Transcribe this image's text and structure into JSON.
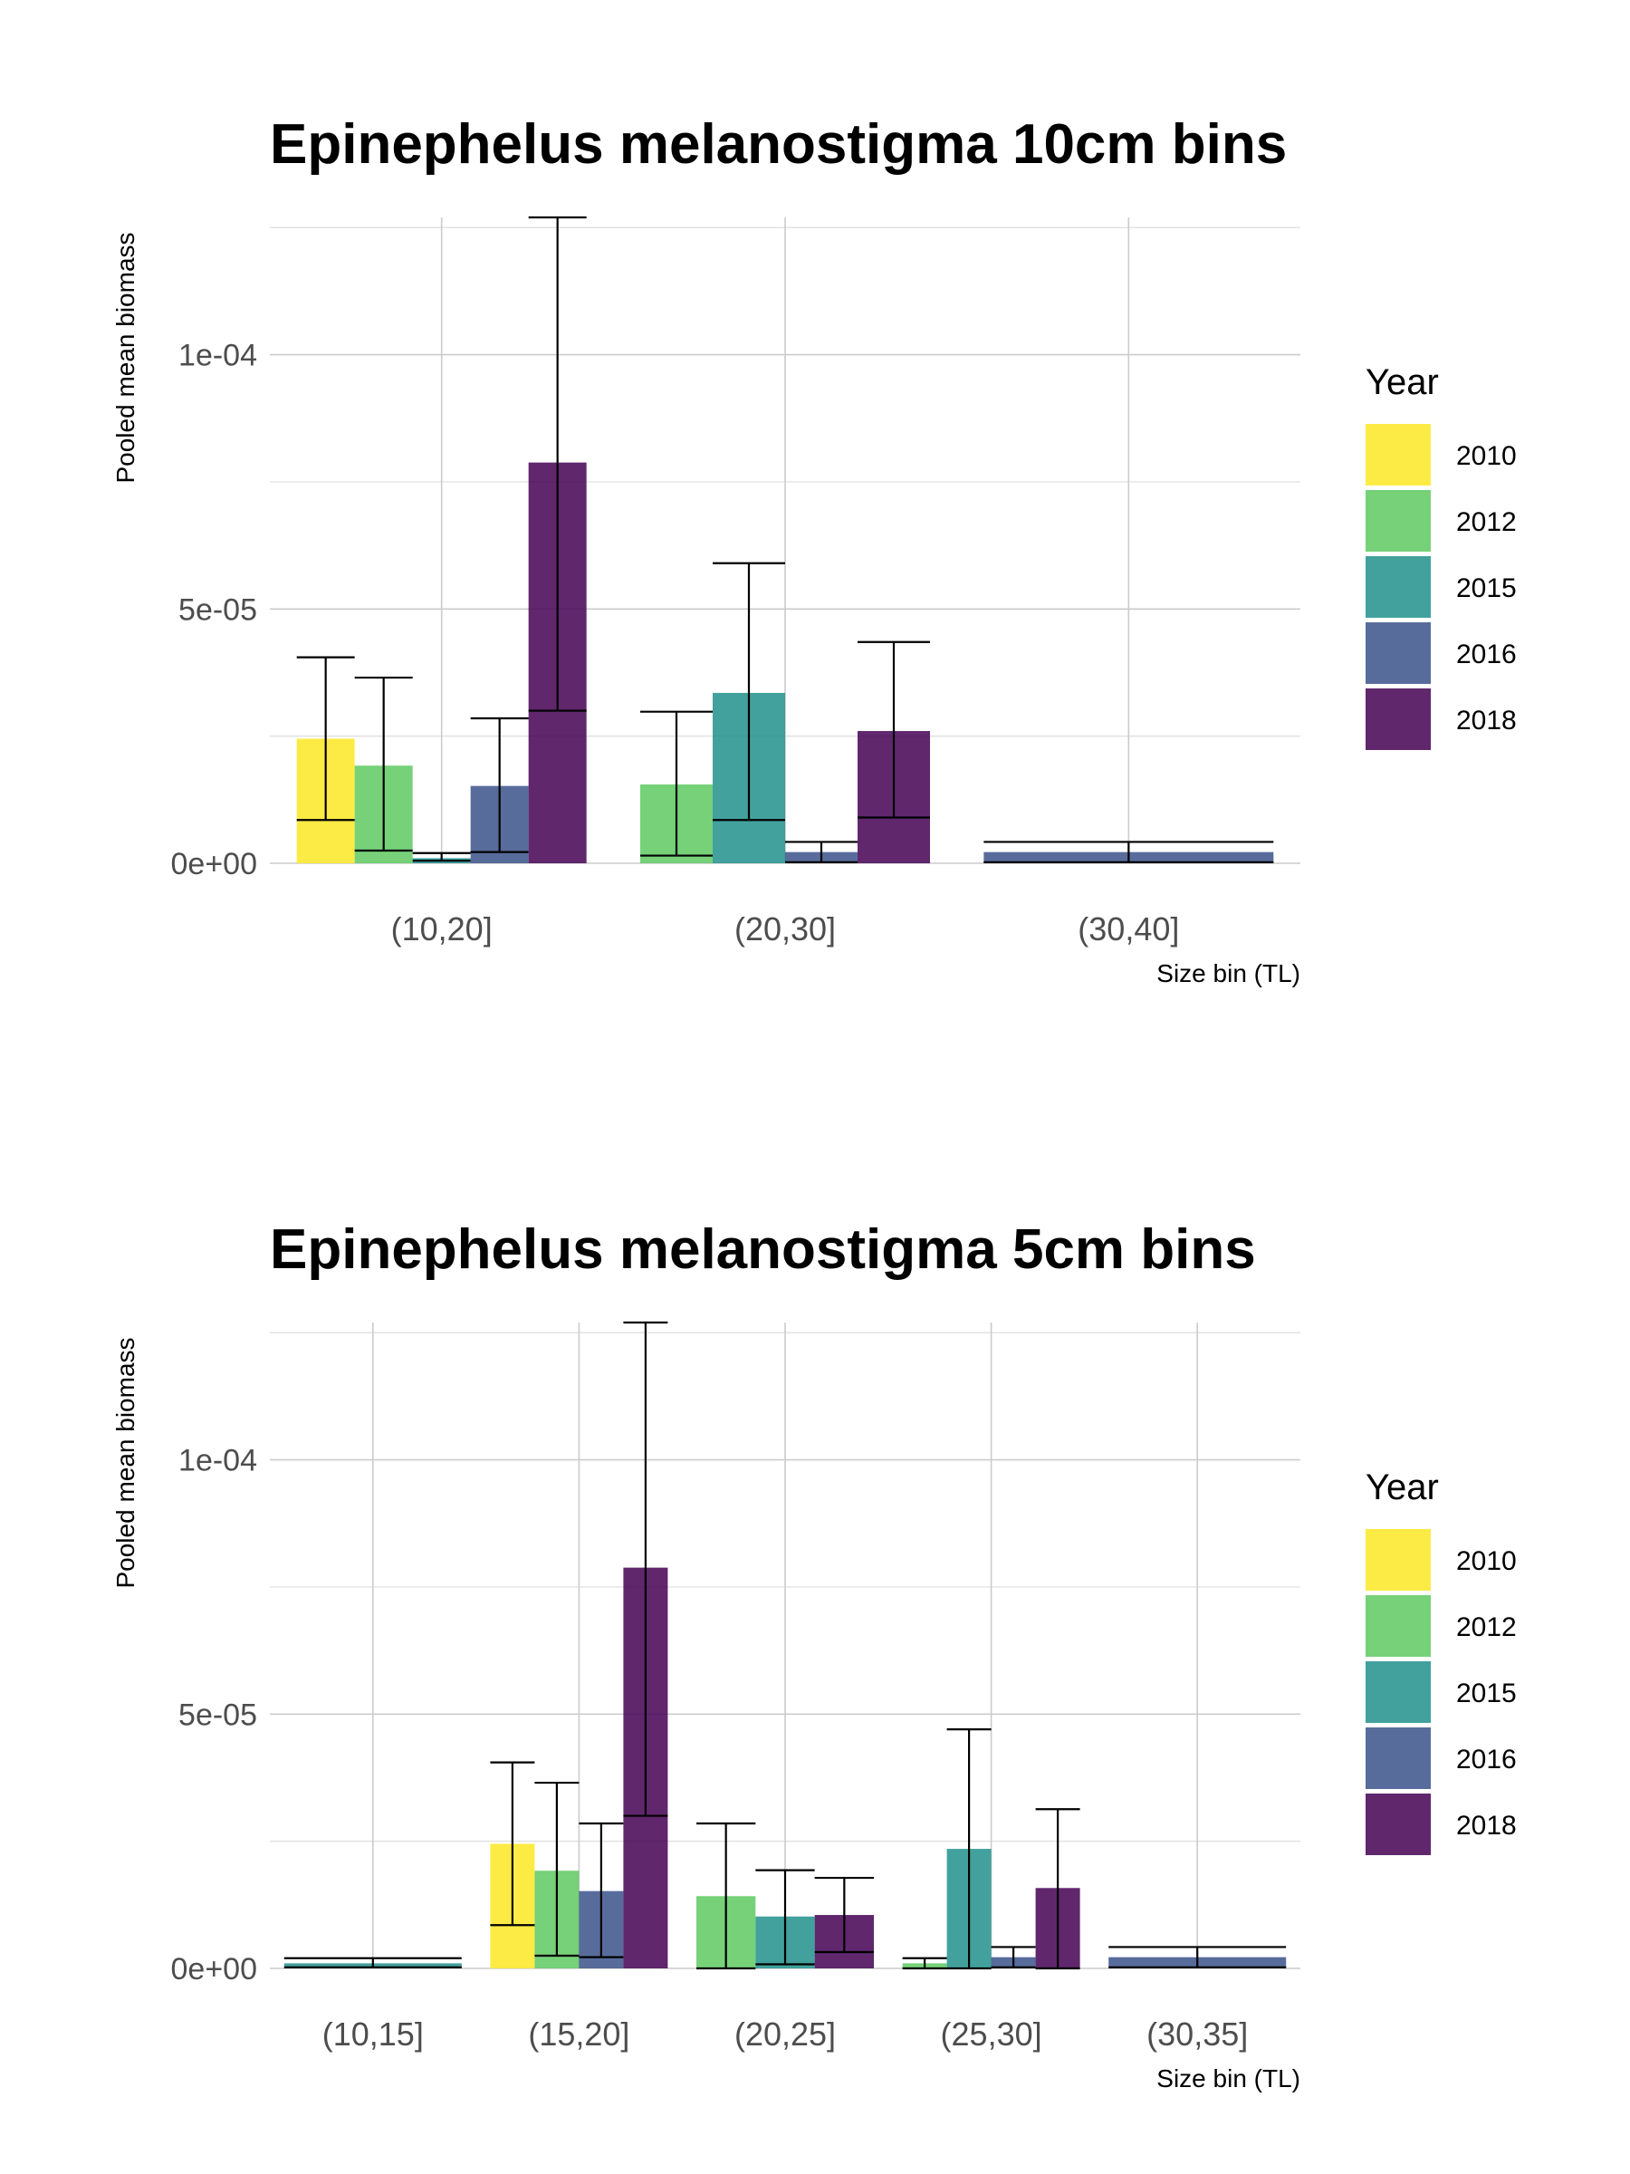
{
  "chart_data": [
    {
      "type": "bar",
      "title": "Epinephelus melanostigma 10cm bins",
      "xlabel": "Size bin (TL)",
      "ylabel": "Pooled mean biomass",
      "ylim": [
        0,
        0.000127
      ],
      "y_ticks": [
        {
          "value": 0,
          "label": "0e+00"
        },
        {
          "value": 5e-05,
          "label": "5e-05"
        },
        {
          "value": 0.0001,
          "label": "1e-04"
        }
      ],
      "grid": true,
      "legend": {
        "title": "Year",
        "position": "right"
      },
      "categories": [
        "(10,20]",
        "(20,30]",
        "(30,40]"
      ],
      "groups": [
        {
          "category": "(10,20]",
          "bars": [
            {
              "year": "2010",
              "value": 2.45e-05,
              "err_low": 8.5e-06,
              "err_high": 4.05e-05
            },
            {
              "year": "2012",
              "value": 1.92e-05,
              "err_low": 2.5e-06,
              "err_high": 3.65e-05
            },
            {
              "year": "2015",
              "value": 1e-06,
              "err_low": 5e-07,
              "err_high": 2e-06
            },
            {
              "year": "2016",
              "value": 1.52e-05,
              "err_low": 2.2e-06,
              "err_high": 2.85e-05
            },
            {
              "year": "2018",
              "value": 7.88e-05,
              "err_low": 3e-05,
              "err_high": 0.000127
            }
          ]
        },
        {
          "category": "(20,30]",
          "bars": [
            {
              "year": "2012",
              "value": 1.55e-05,
              "err_low": 1.5e-06,
              "err_high": 2.98e-05
            },
            {
              "year": "2015",
              "value": 3.35e-05,
              "err_low": 8.5e-06,
              "err_high": 5.9e-05
            },
            {
              "year": "2016",
              "value": 2.2e-06,
              "err_low": 2e-07,
              "err_high": 4.2e-06
            },
            {
              "year": "2018",
              "value": 2.6e-05,
              "err_low": 9e-06,
              "err_high": 4.35e-05
            }
          ]
        },
        {
          "category": "(30,40]",
          "bars": [
            {
              "year": "2016",
              "value": 2.2e-06,
              "err_low": 2e-07,
              "err_high": 4.2e-06
            }
          ]
        }
      ]
    },
    {
      "type": "bar",
      "title": "Epinephelus melanostigma 5cm bins",
      "xlabel": "Size bin (TL)",
      "ylabel": "Pooled mean biomass",
      "ylim": [
        0,
        0.000127
      ],
      "y_ticks": [
        {
          "value": 0,
          "label": "0e+00"
        },
        {
          "value": 5e-05,
          "label": "5e-05"
        },
        {
          "value": 0.0001,
          "label": "1e-04"
        }
      ],
      "grid": true,
      "legend": {
        "title": "Year",
        "position": "right"
      },
      "categories": [
        "(10,15]",
        "(15,20]",
        "(20,25]",
        "(25,30]",
        "(30,35]"
      ],
      "groups": [
        {
          "category": "(10,15]",
          "bars": [
            {
              "year": "2015",
              "value": 1e-06,
              "err_low": 2e-07,
              "err_high": 2e-06
            }
          ]
        },
        {
          "category": "(15,20]",
          "bars": [
            {
              "year": "2010",
              "value": 2.45e-05,
              "err_low": 8.5e-06,
              "err_high": 4.05e-05
            },
            {
              "year": "2012",
              "value": 1.92e-05,
              "err_low": 2.5e-06,
              "err_high": 3.65e-05
            },
            {
              "year": "2016",
              "value": 1.52e-05,
              "err_low": 2.2e-06,
              "err_high": 2.85e-05
            },
            {
              "year": "2018",
              "value": 7.88e-05,
              "err_low": 3e-05,
              "err_high": 0.000127
            }
          ]
        },
        {
          "category": "(20,25]",
          "bars": [
            {
              "year": "2012",
              "value": 1.42e-05,
              "err_low": 0,
              "err_high": 2.85e-05
            },
            {
              "year": "2015",
              "value": 1.02e-05,
              "err_low": 8e-07,
              "err_high": 1.93e-05
            },
            {
              "year": "2018",
              "value": 1.05e-05,
              "err_low": 3.2e-06,
              "err_high": 1.78e-05
            }
          ]
        },
        {
          "category": "(25,30]",
          "bars": [
            {
              "year": "2012",
              "value": 1e-06,
              "err_low": 0,
              "err_high": 2e-06
            },
            {
              "year": "2015",
              "value": 2.35e-05,
              "err_low": 0,
              "err_high": 4.7e-05
            },
            {
              "year": "2016",
              "value": 2.2e-06,
              "err_low": 2e-07,
              "err_high": 4.2e-06
            },
            {
              "year": "2018",
              "value": 1.58e-05,
              "err_low": 0,
              "err_high": 3.13e-05
            }
          ]
        },
        {
          "category": "(30,35]",
          "bars": [
            {
              "year": "2016",
              "value": 2.2e-06,
              "err_low": 2e-07,
              "err_high": 4.2e-06
            }
          ]
        }
      ]
    }
  ],
  "legend_items": [
    {
      "year": "2010",
      "color": "#FDE725"
    },
    {
      "year": "2012",
      "color": "#5EC962"
    },
    {
      "year": "2015",
      "color": "#21918C"
    },
    {
      "year": "2016",
      "color": "#3B528B"
    },
    {
      "year": "2018",
      "color": "#440154"
    }
  ]
}
